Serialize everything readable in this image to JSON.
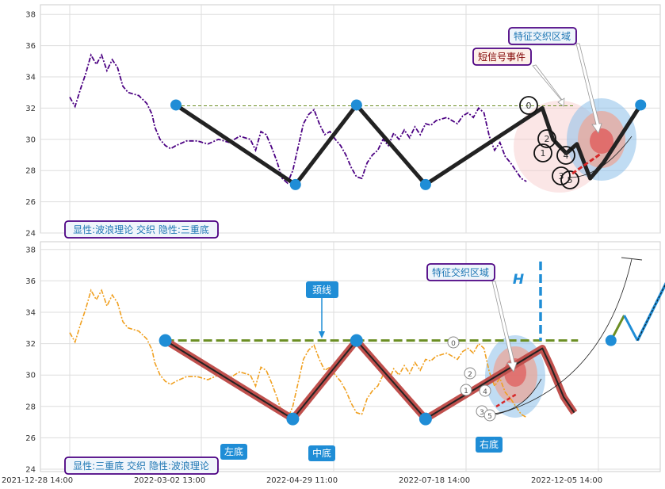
{
  "chart_data": [
    {
      "type": "line",
      "panel": "top",
      "y_ticks": [
        "24",
        "26",
        "28",
        "30",
        "32",
        "34",
        "36",
        "38"
      ],
      "ylim": [
        24,
        38.2
      ],
      "grid": true,
      "price_color": "#4b0082",
      "price_series": [
        [
          0,
          32.7
        ],
        [
          2,
          32.1
        ],
        [
          4,
          33.2
        ],
        [
          6,
          34.2
        ],
        [
          8,
          35.4
        ],
        [
          10,
          34.8
        ],
        [
          12,
          35.4
        ],
        [
          14,
          34.4
        ],
        [
          16,
          35.1
        ],
        [
          18,
          34.6
        ],
        [
          20,
          33.4
        ],
        [
          22,
          33.0
        ],
        [
          26,
          32.8
        ],
        [
          29,
          32.3
        ],
        [
          31,
          31.6
        ],
        [
          32,
          30.8
        ],
        [
          34,
          30.0
        ],
        [
          36,
          29.6
        ],
        [
          38,
          29.4
        ],
        [
          40,
          29.6
        ],
        [
          44,
          29.9
        ],
        [
          48,
          29.9
        ],
        [
          52,
          29.7
        ],
        [
          56,
          30.0
        ],
        [
          60,
          29.8
        ],
        [
          64,
          30.2
        ],
        [
          68,
          30.0
        ],
        [
          70,
          29.3
        ],
        [
          72,
          30.5
        ],
        [
          74,
          30.3
        ],
        [
          76,
          29.5
        ],
        [
          78,
          28.6
        ],
        [
          80,
          27.5
        ],
        [
          82,
          27.2
        ],
        [
          84,
          28.0
        ],
        [
          86,
          29.5
        ],
        [
          88,
          31.0
        ],
        [
          90,
          31.6
        ],
        [
          92,
          31.9
        ],
        [
          94,
          31.0
        ],
        [
          96,
          30.3
        ],
        [
          98,
          30.5
        ],
        [
          100,
          30.0
        ],
        [
          102,
          29.6
        ],
        [
          104,
          29.0
        ],
        [
          106,
          28.2
        ],
        [
          108,
          27.6
        ],
        [
          110,
          27.5
        ],
        [
          112,
          28.5
        ],
        [
          114,
          29.0
        ],
        [
          116,
          29.3
        ],
        [
          118,
          30.0
        ],
        [
          120,
          29.6
        ],
        [
          122,
          30.4
        ],
        [
          124,
          30.0
        ],
        [
          126,
          30.6
        ],
        [
          128,
          30.1
        ],
        [
          130,
          30.8
        ],
        [
          132,
          30.3
        ],
        [
          134,
          31.0
        ],
        [
          136,
          30.9
        ],
        [
          138,
          31.2
        ],
        [
          140,
          31.3
        ],
        [
          142,
          31.4
        ],
        [
          144,
          31.2
        ],
        [
          146,
          31.0
        ],
        [
          148,
          31.5
        ],
        [
          150,
          31.7
        ],
        [
          152,
          31.4
        ],
        [
          154,
          32.0
        ],
        [
          156,
          31.7
        ],
        [
          158,
          30.2
        ],
        [
          160,
          29.3
        ],
        [
          162,
          29.8
        ],
        [
          164,
          28.9
        ],
        [
          166,
          28.5
        ],
        [
          168,
          28.0
        ],
        [
          170,
          27.5
        ],
        [
          172,
          27.3
        ]
      ],
      "zigzag": [
        [
          40,
          32.2
        ],
        [
          85,
          27.1
        ],
        [
          108,
          32.2
        ],
        [
          134,
          27.1
        ],
        [
          178,
          32.0
        ],
        [
          182,
          30.0
        ],
        [
          187,
          29.1
        ],
        [
          191,
          29.7
        ],
        [
          196,
          27.5
        ],
        [
          201,
          28.5
        ],
        [
          215,
          32.2
        ]
      ],
      "neckline_y": 32.15,
      "callouts": [
        {
          "label": "短信号事件",
          "color": "#800000"
        },
        {
          "label": "特征交织区域",
          "color": "#1f77b4"
        }
      ],
      "caption": "显性:波浪理论 交织 隐性:三重底"
    },
    {
      "type": "line",
      "panel": "bottom",
      "y_ticks": [
        "24",
        "26",
        "28",
        "30",
        "32",
        "34",
        "36",
        "38"
      ],
      "ylim": [
        24,
        38.2
      ],
      "grid": true,
      "price_color": "#f0a020",
      "x_ticks": [
        "2021-12-28 14:00",
        "2022-03-02 13:00",
        "2022-04-29 11:00",
        "2022-07-18 14:00",
        "2022-12-05 14:00"
      ],
      "pattern": [
        [
          36,
          32.2
        ],
        [
          84,
          27.2
        ],
        [
          108,
          32.2
        ],
        [
          134,
          27.2
        ],
        [
          178,
          31.7
        ],
        [
          181,
          30.6
        ],
        [
          186,
          28.6
        ],
        [
          190,
          27.6
        ]
      ],
      "projection": [
        [
          208,
          32.2
        ],
        [
          213,
          33.8
        ],
        [
          218,
          32.2
        ],
        [
          233,
          37.3
        ]
      ],
      "neckline_y": 32.2,
      "labels": {
        "neck": "颈线",
        "left": "左底",
        "mid": "中底",
        "right": "右底",
        "h": "H",
        "zone": "特征交织区域"
      },
      "caption": "显性:三重底 交织 隐性:波浪理论"
    }
  ]
}
